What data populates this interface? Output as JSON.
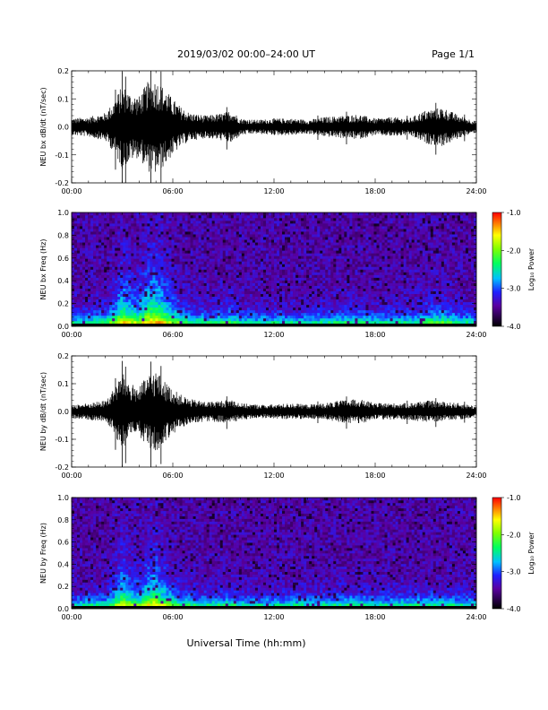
{
  "header": {
    "title": "2019/03/02  00:00–24:00 UT",
    "page": "Page 1/1"
  },
  "xlabel": "Universal Time (hh:mm)",
  "chart_data": [
    {
      "type": "line",
      "ylabel": "NEU bx dB/dt (nT/sec)",
      "xlim": [
        0,
        24
      ],
      "ylim": [
        -0.2,
        0.2
      ],
      "xticks": [
        "00:00",
        "06:00",
        "12:00",
        "18:00",
        "24:00"
      ],
      "yticks": [
        "-0.2",
        "-0.1",
        "0.0",
        "0.1",
        "0.2"
      ],
      "envelope": {
        "hour": [
          0,
          1,
          2,
          2.5,
          3,
          3.5,
          4,
          4.5,
          5,
          5.5,
          6,
          6.5,
          7,
          8,
          9,
          9.5,
          10,
          11,
          12,
          13,
          14,
          15,
          16,
          17,
          18,
          19,
          20,
          21,
          22,
          23,
          24
        ],
        "amplitude": [
          0.03,
          0.035,
          0.05,
          0.09,
          0.15,
          0.12,
          0.11,
          0.16,
          0.17,
          0.14,
          0.1,
          0.07,
          0.05,
          0.04,
          0.05,
          0.06,
          0.03,
          0.025,
          0.03,
          0.03,
          0.025,
          0.035,
          0.04,
          0.045,
          0.03,
          0.035,
          0.03,
          0.06,
          0.07,
          0.04,
          0.02
        ]
      }
    },
    {
      "type": "heatmap",
      "ylabel": "NEU bx Freq (Hz)",
      "xlim": [
        0,
        24
      ],
      "ylim": [
        0,
        1
      ],
      "xticks": [
        "00:00",
        "06:00",
        "12:00",
        "18:00",
        "24:00"
      ],
      "yticks": [
        "0.0",
        "0.2",
        "0.4",
        "0.6",
        "0.8",
        "1.0"
      ],
      "colorbar": {
        "label": "Log₁₀ Power",
        "range": [
          -4,
          -1
        ],
        "ticks": [
          "-1.0",
          "-2.0",
          "-3.0",
          "-4.0"
        ]
      }
    },
    {
      "type": "line",
      "ylabel": "NEU by dB/dt (nT/sec)",
      "xlim": [
        0,
        24
      ],
      "ylim": [
        -0.2,
        0.2
      ],
      "xticks": [
        "00:00",
        "06:00",
        "12:00",
        "18:00",
        "24:00"
      ],
      "yticks": [
        "-0.2",
        "-0.1",
        "0.0",
        "0.1",
        "0.2"
      ],
      "envelope": {
        "hour": [
          0,
          1,
          2,
          2.5,
          3,
          3.5,
          4,
          4.5,
          5,
          5.5,
          6,
          6.5,
          7,
          8,
          9,
          9.5,
          10,
          11,
          12,
          13,
          14,
          15,
          16,
          17,
          18,
          19,
          20,
          21,
          22,
          23,
          24
        ],
        "amplitude": [
          0.025,
          0.03,
          0.04,
          0.08,
          0.14,
          0.1,
          0.09,
          0.13,
          0.15,
          0.11,
          0.08,
          0.06,
          0.045,
          0.035,
          0.04,
          0.045,
          0.03,
          0.025,
          0.025,
          0.03,
          0.025,
          0.03,
          0.04,
          0.045,
          0.03,
          0.03,
          0.03,
          0.04,
          0.035,
          0.03,
          0.02
        ]
      }
    },
    {
      "type": "heatmap",
      "ylabel": "NEU by Freq (Hz)",
      "xlim": [
        0,
        24
      ],
      "ylim": [
        0,
        1
      ],
      "xticks": [
        "00:00",
        "06:00",
        "12:00",
        "18:00",
        "24:00"
      ],
      "yticks": [
        "0.0",
        "0.2",
        "0.4",
        "0.6",
        "0.8",
        "1.0"
      ],
      "colorbar": {
        "label": "Log₁₀ Power",
        "range": [
          -4,
          -1
        ],
        "ticks": [
          "-1.0",
          "-2.0",
          "-3.0",
          "-4.0"
        ]
      }
    }
  ]
}
